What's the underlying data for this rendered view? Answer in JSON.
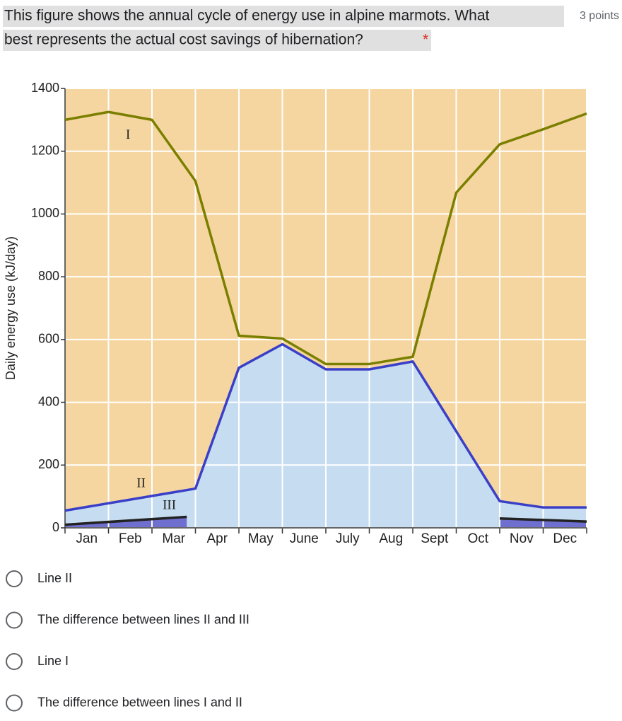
{
  "question": {
    "text_lines": [
      "This figure shows the annual cycle of energy use in alpine marmots. What",
      "best represents the actual cost savings of hibernation?"
    ],
    "required": "*",
    "points": "3 points"
  },
  "chart_data": {
    "type": "line",
    "y_label": "Daily energy use (kJ/day)",
    "xlim": [
      0,
      12
    ],
    "xticks": [
      {
        "value": 0.5,
        "label": "Jan"
      },
      {
        "value": 1.5,
        "label": "Feb"
      },
      {
        "value": 2.5,
        "label": "Mar"
      },
      {
        "value": 3.5,
        "label": "Apr"
      },
      {
        "value": 4.5,
        "label": "May"
      },
      {
        "value": 5.5,
        "label": "June"
      },
      {
        "value": 6.5,
        "label": "July"
      },
      {
        "value": 7.5,
        "label": "Aug"
      },
      {
        "value": 8.5,
        "label": "Sept"
      },
      {
        "value": 9.5,
        "label": "Oct"
      },
      {
        "value": 10.5,
        "label": "Nov"
      },
      {
        "value": 11.5,
        "label": "Dec"
      }
    ],
    "ylim": [
      0,
      1400
    ],
    "yticks": [
      0,
      200,
      400,
      600,
      800,
      1000,
      1200,
      1400
    ],
    "grid": true,
    "background": "#f5d6a0",
    "series": [
      {
        "name": "I",
        "color": "#7a7f00",
        "x": [
          0,
          1,
          2,
          3,
          4,
          5,
          6,
          7,
          8,
          9,
          10,
          11,
          12
        ],
        "values": [
          1300,
          1325,
          1300,
          1105,
          612,
          603,
          522,
          522,
          545,
          1068,
          1222,
          1270,
          1320
        ],
        "fill": null
      },
      {
        "name": "II",
        "color": "#3a3fc8",
        "x": [
          0,
          3,
          4,
          5,
          6,
          7,
          8,
          10,
          11,
          12
        ],
        "values": [
          55,
          125,
          510,
          585,
          505,
          505,
          530,
          85,
          65,
          65
        ],
        "fill": "#c6dcf0"
      },
      {
        "name": "III",
        "color": "#222222",
        "x": [
          0,
          2.8,
          6,
          10,
          12
        ],
        "values": [
          10,
          35,
          null,
          30,
          20
        ],
        "fill": "#6f6fd0"
      }
    ]
  },
  "options": [
    "Line II",
    "The difference between lines II and III",
    "Line I",
    "The difference between lines I and II"
  ]
}
